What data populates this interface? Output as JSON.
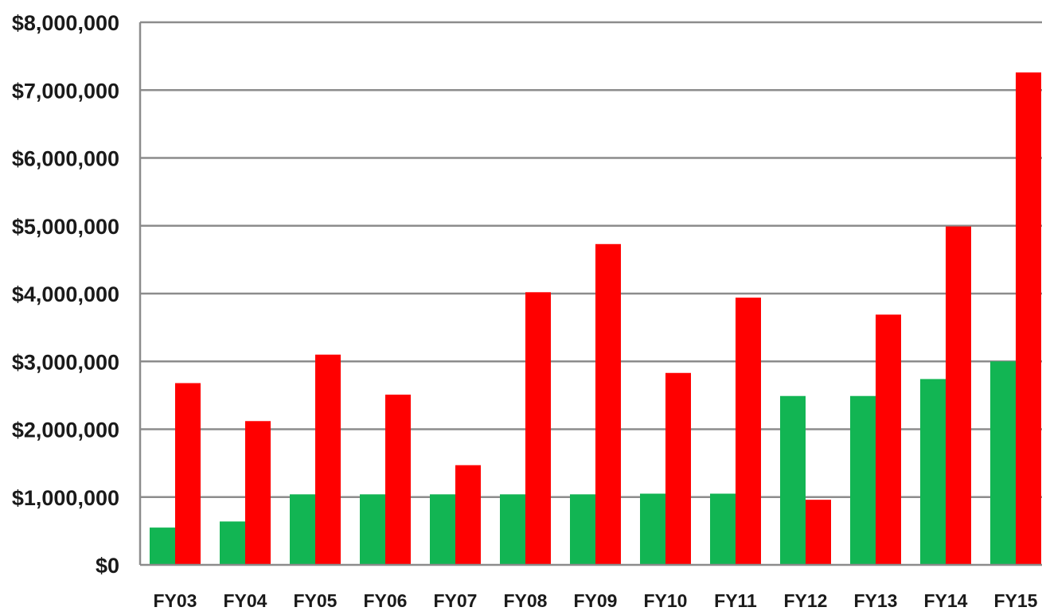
{
  "chart_data": {
    "type": "bar",
    "categories": [
      "FY03",
      "FY04",
      "FY05",
      "FY06",
      "FY07",
      "FY08",
      "FY09",
      "FY10",
      "FY11",
      "FY12",
      "FY13",
      "FY14",
      "FY15"
    ],
    "series": [
      {
        "color": "#12b553",
        "values": [
          550000,
          640000,
          1040000,
          1040000,
          1040000,
          1040000,
          1040000,
          1050000,
          1050000,
          2490000,
          2490000,
          2740000,
          3000000
        ]
      },
      {
        "color": "#ff0000",
        "values": [
          2680000,
          2120000,
          3100000,
          2510000,
          1470000,
          4020000,
          4730000,
          2830000,
          3940000,
          960000,
          3690000,
          4990000,
          7260000
        ]
      }
    ],
    "ylim": [
      0,
      8000000
    ],
    "yticks": [
      0,
      1000000,
      2000000,
      3000000,
      4000000,
      5000000,
      6000000,
      7000000,
      8000000
    ],
    "ytick_labels": [
      "$0",
      "$1,000,000",
      "$2,000,000",
      "$3,000,000",
      "$4,000,000",
      "$5,000,000",
      "$6,000,000",
      "$7,000,000",
      "$8,000,000"
    ],
    "grid": true,
    "legend": false,
    "title": "",
    "xlabel": "",
    "ylabel": ""
  }
}
